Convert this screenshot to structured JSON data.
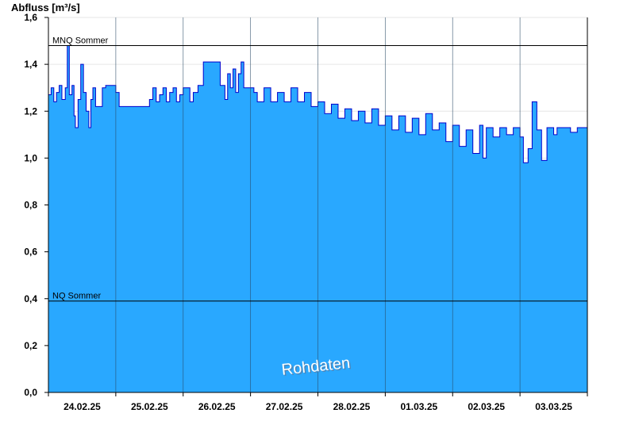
{
  "chart_data": {
    "type": "area",
    "ylabel": "Abfluss [m³/s]",
    "ylim": [
      0,
      1.6
    ],
    "yticks": [
      "0,0",
      "0,2",
      "0,4",
      "0,6",
      "0,8",
      "1,0",
      "1,2",
      "1,4",
      "1,6"
    ],
    "ytick_values": [
      0,
      0.2,
      0.4,
      0.6,
      0.8,
      1.0,
      1.2,
      1.4,
      1.6
    ],
    "x_dates": [
      "24.02.25",
      "25.02.25",
      "26.02.25",
      "27.02.25",
      "28.02.25",
      "01.03.25",
      "02.03.25",
      "03.03.25"
    ],
    "grid": "vertical day lines",
    "fill_color": "#29a8ff",
    "line_color": "#0000cc",
    "reference_lines": [
      {
        "label": "MNQ Sommer",
        "value": 1.48
      },
      {
        "label": "NQ Sommer",
        "value": 0.39
      }
    ],
    "annotation": "Rohdaten",
    "series": [
      {
        "points": [
          [
            0.0,
            1.27
          ],
          [
            0.04,
            1.3
          ],
          [
            0.08,
            1.24
          ],
          [
            0.12,
            1.28
          ],
          [
            0.16,
            1.31
          ],
          [
            0.2,
            1.25
          ],
          [
            0.25,
            1.3
          ],
          [
            0.28,
            1.48
          ],
          [
            0.31,
            1.27
          ],
          [
            0.35,
            1.31
          ],
          [
            0.38,
            1.18
          ],
          [
            0.4,
            1.13
          ],
          [
            0.44,
            1.25
          ],
          [
            0.48,
            1.4
          ],
          [
            0.52,
            1.28
          ],
          [
            0.56,
            1.2
          ],
          [
            0.6,
            1.13
          ],
          [
            0.63,
            1.25
          ],
          [
            0.66,
            1.3
          ],
          [
            0.7,
            1.22
          ],
          [
            0.75,
            1.22
          ],
          [
            0.8,
            1.3
          ],
          [
            0.85,
            1.31
          ],
          [
            0.9,
            1.31
          ],
          [
            1.0,
            1.28
          ],
          [
            1.05,
            1.22
          ],
          [
            1.1,
            1.22
          ],
          [
            1.2,
            1.22
          ],
          [
            1.3,
            1.22
          ],
          [
            1.45,
            1.22
          ],
          [
            1.5,
            1.25
          ],
          [
            1.55,
            1.3
          ],
          [
            1.6,
            1.24
          ],
          [
            1.65,
            1.27
          ],
          [
            1.7,
            1.3
          ],
          [
            1.75,
            1.24
          ],
          [
            1.8,
            1.28
          ],
          [
            1.85,
            1.3
          ],
          [
            1.9,
            1.24
          ],
          [
            1.95,
            1.27
          ],
          [
            2.0,
            1.3
          ],
          [
            2.1,
            1.24
          ],
          [
            2.15,
            1.28
          ],
          [
            2.22,
            1.31
          ],
          [
            2.3,
            1.41
          ],
          [
            2.4,
            1.41
          ],
          [
            2.48,
            1.41
          ],
          [
            2.55,
            1.31
          ],
          [
            2.62,
            1.25
          ],
          [
            2.66,
            1.36
          ],
          [
            2.7,
            1.3
          ],
          [
            2.74,
            1.38
          ],
          [
            2.78,
            1.28
          ],
          [
            2.82,
            1.36
          ],
          [
            2.86,
            1.41
          ],
          [
            2.9,
            1.3
          ],
          [
            2.95,
            1.3
          ],
          [
            3.05,
            1.28
          ],
          [
            3.1,
            1.24
          ],
          [
            3.2,
            1.3
          ],
          [
            3.3,
            1.24
          ],
          [
            3.4,
            1.28
          ],
          [
            3.5,
            1.24
          ],
          [
            3.6,
            1.3
          ],
          [
            3.7,
            1.24
          ],
          [
            3.8,
            1.28
          ],
          [
            3.9,
            1.22
          ],
          [
            4.0,
            1.24
          ],
          [
            4.1,
            1.19
          ],
          [
            4.2,
            1.23
          ],
          [
            4.3,
            1.17
          ],
          [
            4.4,
            1.21
          ],
          [
            4.5,
            1.16
          ],
          [
            4.6,
            1.2
          ],
          [
            4.7,
            1.15
          ],
          [
            4.8,
            1.21
          ],
          [
            4.9,
            1.14
          ],
          [
            5.0,
            1.18
          ],
          [
            5.1,
            1.12
          ],
          [
            5.2,
            1.18
          ],
          [
            5.3,
            1.11
          ],
          [
            5.4,
            1.17
          ],
          [
            5.5,
            1.1
          ],
          [
            5.6,
            1.19
          ],
          [
            5.7,
            1.12
          ],
          [
            5.8,
            1.15
          ],
          [
            5.9,
            1.07
          ],
          [
            6.0,
            1.14
          ],
          [
            6.1,
            1.05
          ],
          [
            6.2,
            1.12
          ],
          [
            6.3,
            1.02
          ],
          [
            6.4,
            1.14
          ],
          [
            6.45,
            1.0
          ],
          [
            6.5,
            1.13
          ],
          [
            6.6,
            1.09
          ],
          [
            6.7,
            1.13
          ],
          [
            6.8,
            1.1
          ],
          [
            6.9,
            1.13
          ],
          [
            7.0,
            1.09
          ],
          [
            7.05,
            0.98
          ],
          [
            7.12,
            1.04
          ],
          [
            7.18,
            1.24
          ],
          [
            7.25,
            1.12
          ],
          [
            7.32,
            0.99
          ],
          [
            7.4,
            1.13
          ],
          [
            7.5,
            1.1
          ],
          [
            7.55,
            1.13
          ],
          [
            7.65,
            1.13
          ],
          [
            7.75,
            1.11
          ],
          [
            7.85,
            1.13
          ],
          [
            8.0,
            1.13
          ]
        ]
      }
    ]
  }
}
